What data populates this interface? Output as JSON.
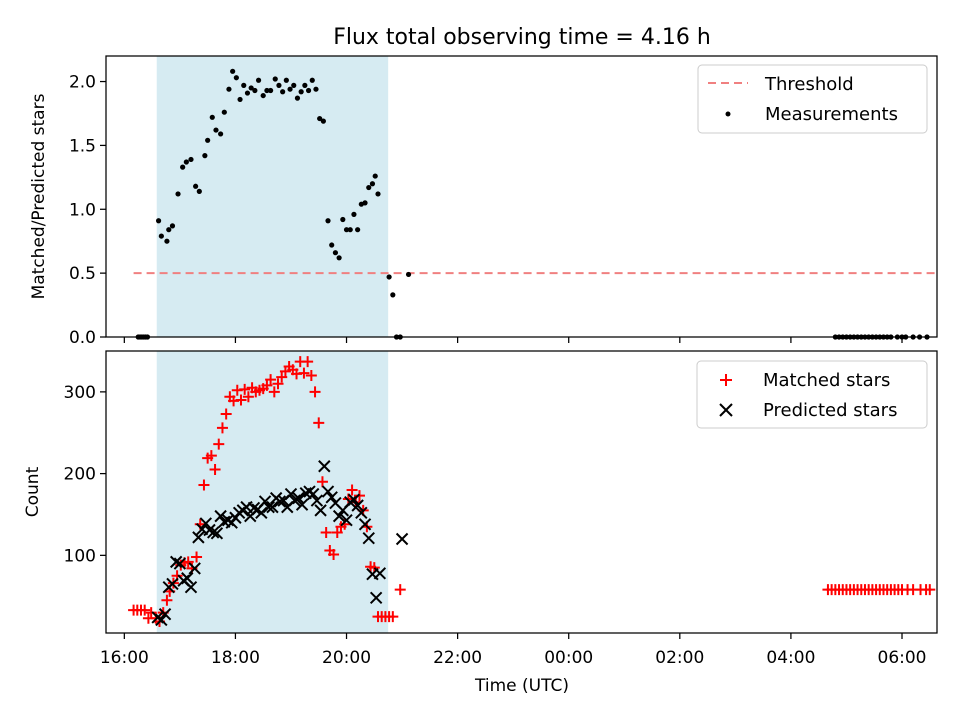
{
  "title": "Flux total observing time = 4.16 h",
  "xlabel": "Time (UTC)",
  "x_ticks": [
    "16:00",
    "18:00",
    "20:00",
    "22:00",
    "00:00",
    "02:00",
    "04:00",
    "06:00"
  ],
  "colors": {
    "threshold": "#f08080",
    "measurements": "#000000",
    "matched": "#ff0000",
    "predicted": "#000000",
    "span": "#add8e6"
  },
  "chart_data": [
    {
      "type": "scatter",
      "ylabel": "Matched/Predicted stars",
      "xlim": [
        "16:00",
        "06:00+1"
      ],
      "ylim": [
        0,
        2.2
      ],
      "y_ticks": [
        "0.0",
        "0.5",
        "1.0",
        "1.5",
        "2.0"
      ],
      "legend_position": "top-right",
      "observing_span": {
        "start": "16:35",
        "end": "20:45"
      },
      "threshold": {
        "name": "Threshold",
        "value": 0.5,
        "x_start": "16:10",
        "x_end": "06:40"
      },
      "series": [
        {
          "name": "Measurements",
          "points": [
            [
              "16:15",
              0
            ],
            [
              "16:17",
              0
            ],
            [
              "16:19",
              0
            ],
            [
              "16:21",
              0
            ],
            [
              "16:23",
              0
            ],
            [
              "16:25",
              0
            ],
            [
              "16:37",
              0.91
            ],
            [
              "16:40",
              0.79
            ],
            [
              "16:46",
              0.75
            ],
            [
              "16:48",
              0.84
            ],
            [
              "16:52",
              0.87
            ],
            [
              "16:58",
              1.12
            ],
            [
              "17:03",
              1.33
            ],
            [
              "17:07",
              1.37
            ],
            [
              "17:12",
              1.39
            ],
            [
              "17:17",
              1.18
            ],
            [
              "17:21",
              1.14
            ],
            [
              "17:27",
              1.42
            ],
            [
              "17:30",
              1.54
            ],
            [
              "17:35",
              1.72
            ],
            [
              "17:39",
              1.62
            ],
            [
              "17:44",
              1.59
            ],
            [
              "17:48",
              1.76
            ],
            [
              "17:53",
              1.94
            ],
            [
              "17:57",
              2.08
            ],
            [
              "18:01",
              2.03
            ],
            [
              "18:05",
              1.86
            ],
            [
              "18:09",
              1.97
            ],
            [
              "18:13",
              1.91
            ],
            [
              "18:17",
              1.95
            ],
            [
              "18:21",
              1.93
            ],
            [
              "18:25",
              2.01
            ],
            [
              "18:30",
              1.89
            ],
            [
              "18:34",
              1.93
            ],
            [
              "18:38",
              1.93
            ],
            [
              "18:43",
              2.02
            ],
            [
              "18:47",
              1.97
            ],
            [
              "18:51",
              1.92
            ],
            [
              "18:55",
              2.01
            ],
            [
              "18:59",
              1.94
            ],
            [
              "19:03",
              1.97
            ],
            [
              "19:07",
              1.87
            ],
            [
              "19:11",
              1.92
            ],
            [
              "19:15",
              1.97
            ],
            [
              "19:19",
              1.93
            ],
            [
              "19:23",
              2.01
            ],
            [
              "19:27",
              1.94
            ],
            [
              "19:31",
              1.71
            ],
            [
              "19:35",
              1.69
            ],
            [
              "19:40",
              0.91
            ],
            [
              "19:44",
              0.72
            ],
            [
              "19:48",
              0.66
            ],
            [
              "19:52",
              0.62
            ],
            [
              "19:56",
              0.92
            ],
            [
              "20:00",
              0.84
            ],
            [
              "20:04",
              0.84
            ],
            [
              "20:08",
              0.96
            ],
            [
              "20:12",
              0.84
            ],
            [
              "20:16",
              1.04
            ],
            [
              "20:20",
              1.05
            ],
            [
              "20:24",
              1.17
            ],
            [
              "20:28",
              1.2
            ],
            [
              "20:31",
              1.26
            ],
            [
              "20:34",
              1.12
            ],
            [
              "20:46",
              0.47
            ],
            [
              "20:50",
              0.33
            ],
            [
              "20:54",
              0
            ],
            [
              "20:58",
              0
            ],
            [
              "21:07",
              0.49
            ],
            [
              "04:48",
              0
            ],
            [
              "04:52",
              0
            ],
            [
              "04:56",
              0
            ],
            [
              "05:00",
              0
            ],
            [
              "05:04",
              0
            ],
            [
              "05:08",
              0
            ],
            [
              "05:12",
              0
            ],
            [
              "05:16",
              0
            ],
            [
              "05:20",
              0
            ],
            [
              "05:24",
              0
            ],
            [
              "05:28",
              0
            ],
            [
              "05:32",
              0
            ],
            [
              "05:36",
              0
            ],
            [
              "05:40",
              0
            ],
            [
              "05:44",
              0
            ],
            [
              "05:48",
              0
            ],
            [
              "05:55",
              0
            ],
            [
              "06:00",
              0
            ],
            [
              "06:04",
              0
            ],
            [
              "06:12",
              0
            ],
            [
              "06:19",
              0
            ],
            [
              "06:27",
              0
            ]
          ]
        }
      ]
    },
    {
      "type": "scatter",
      "ylabel": "Count",
      "xlim": [
        "16:00",
        "06:00+1"
      ],
      "ylim": [
        5,
        350
      ],
      "y_ticks": [
        "100",
        "200",
        "300"
      ],
      "legend_position": "top-right",
      "observing_span": {
        "start": "16:35",
        "end": "20:45"
      },
      "series": [
        {
          "name": "Matched stars",
          "marker": "+",
          "points": [
            [
              "16:10",
              33
            ],
            [
              "16:14",
              33
            ],
            [
              "16:18",
              33
            ],
            [
              "16:22",
              33
            ],
            [
              "16:26",
              23
            ],
            [
              "16:29",
              30
            ],
            [
              "16:34",
              23
            ],
            [
              "16:38",
              19
            ],
            [
              "16:42",
              30
            ],
            [
              "16:46",
              45
            ],
            [
              "16:49",
              56
            ],
            [
              "16:53",
              66
            ],
            [
              "16:57",
              75
            ],
            [
              "17:01",
              88
            ],
            [
              "17:05",
              91
            ],
            [
              "17:09",
              92
            ],
            [
              "17:13",
              84
            ],
            [
              "17:18",
              98
            ],
            [
              "17:22",
              138
            ],
            [
              "17:26",
              186
            ],
            [
              "17:30",
              219
            ],
            [
              "17:34",
              222
            ],
            [
              "17:38",
              205
            ],
            [
              "17:42",
              236
            ],
            [
              "17:46",
              256
            ],
            [
              "17:50",
              273
            ],
            [
              "17:54",
              294
            ],
            [
              "17:58",
              289
            ],
            [
              "18:02",
              302
            ],
            [
              "18:06",
              290
            ],
            [
              "18:10",
              303
            ],
            [
              "18:14",
              294
            ],
            [
              "18:18",
              305
            ],
            [
              "18:22",
              300
            ],
            [
              "18:26",
              302
            ],
            [
              "18:30",
              304
            ],
            [
              "18:34",
              308
            ],
            [
              "18:38",
              315
            ],
            [
              "18:42",
              300
            ],
            [
              "18:46",
              310
            ],
            [
              "18:50",
              318
            ],
            [
              "18:54",
              325
            ],
            [
              "18:58",
              331
            ],
            [
              "19:02",
              327
            ],
            [
              "19:06",
              322
            ],
            [
              "19:10",
              337
            ],
            [
              "19:14",
              323
            ],
            [
              "19:18",
              337
            ],
            [
              "19:22",
              320
            ],
            [
              "19:26",
              300
            ],
            [
              "19:30",
              262
            ],
            [
              "19:34",
              190
            ],
            [
              "19:38",
              128
            ],
            [
              "19:42",
              106
            ],
            [
              "19:46",
              101
            ],
            [
              "19:50",
              128
            ],
            [
              "19:54",
              135
            ],
            [
              "19:58",
              138
            ],
            [
              "20:02",
              169
            ],
            [
              "20:06",
              180
            ],
            [
              "20:10",
              165
            ],
            [
              "20:14",
              173
            ],
            [
              "20:18",
              155
            ],
            [
              "20:22",
              135
            ],
            [
              "20:26",
              86
            ],
            [
              "20:30",
              85
            ],
            [
              "20:34",
              25
            ],
            [
              "20:38",
              25
            ],
            [
              "20:42",
              25
            ],
            [
              "20:46",
              25
            ],
            [
              "20:50",
              25
            ],
            [
              "20:58",
              58
            ],
            [
              "04:40",
              58
            ],
            [
              "04:44",
              58
            ],
            [
              "04:48",
              58
            ],
            [
              "04:52",
              58
            ],
            [
              "04:56",
              58
            ],
            [
              "05:00",
              58
            ],
            [
              "05:04",
              58
            ],
            [
              "05:08",
              58
            ],
            [
              "05:12",
              58
            ],
            [
              "05:16",
              58
            ],
            [
              "05:20",
              58
            ],
            [
              "05:24",
              58
            ],
            [
              "05:28",
              58
            ],
            [
              "05:32",
              58
            ],
            [
              "05:36",
              58
            ],
            [
              "05:40",
              58
            ],
            [
              "05:44",
              58
            ],
            [
              "05:48",
              58
            ],
            [
              "05:52",
              58
            ],
            [
              "05:56",
              58
            ],
            [
              "06:00",
              58
            ],
            [
              "06:06",
              58
            ],
            [
              "06:12",
              58
            ],
            [
              "06:20",
              58
            ],
            [
              "06:26",
              58
            ],
            [
              "06:30",
              58
            ]
          ]
        },
        {
          "name": "Predicted stars",
          "marker": "x",
          "points": [
            [
              "16:36",
              24
            ],
            [
              "16:40",
              21
            ],
            [
              "16:44",
              28
            ],
            [
              "16:48",
              61
            ],
            [
              "16:52",
              65
            ],
            [
              "16:56",
              92
            ],
            [
              "17:00",
              90
            ],
            [
              "17:04",
              69
            ],
            [
              "17:08",
              72
            ],
            [
              "17:12",
              61
            ],
            [
              "17:16",
              84
            ],
            [
              "17:20",
              122
            ],
            [
              "17:24",
              132
            ],
            [
              "17:28",
              139
            ],
            [
              "17:32",
              131
            ],
            [
              "17:36",
              128
            ],
            [
              "17:40",
              127
            ],
            [
              "17:44",
              148
            ],
            [
              "17:48",
              141
            ],
            [
              "17:52",
              143
            ],
            [
              "17:56",
              140
            ],
            [
              "18:00",
              146
            ],
            [
              "18:04",
              152
            ],
            [
              "18:08",
              155
            ],
            [
              "18:12",
              159
            ],
            [
              "18:16",
              148
            ],
            [
              "18:20",
              158
            ],
            [
              "18:24",
              156
            ],
            [
              "18:28",
              152
            ],
            [
              "18:32",
              166
            ],
            [
              "18:36",
              159
            ],
            [
              "18:40",
              159
            ],
            [
              "18:44",
              170
            ],
            [
              "18:48",
              166
            ],
            [
              "18:52",
              167
            ],
            [
              "18:56",
              159
            ],
            [
              "19:00",
              175
            ],
            [
              "19:04",
              167
            ],
            [
              "19:08",
              170
            ],
            [
              "19:12",
              162
            ],
            [
              "19:16",
              176
            ],
            [
              "19:20",
              178
            ],
            [
              "19:24",
              175
            ],
            [
              "19:28",
              167
            ],
            [
              "19:32",
              155
            ],
            [
              "19:36",
              209
            ],
            [
              "19:40",
              178
            ],
            [
              "19:44",
              171
            ],
            [
              "19:48",
              164
            ],
            [
              "19:52",
              148
            ],
            [
              "19:56",
              155
            ],
            [
              "20:00",
              143
            ],
            [
              "20:04",
              165
            ],
            [
              "20:08",
              168
            ],
            [
              "20:12",
              161
            ],
            [
              "20:16",
              152
            ],
            [
              "20:20",
              138
            ],
            [
              "20:24",
              121
            ],
            [
              "20:28",
              77
            ],
            [
              "20:32",
              48
            ],
            [
              "20:36",
              78
            ],
            [
              "21:00",
              120
            ]
          ]
        }
      ]
    }
  ]
}
